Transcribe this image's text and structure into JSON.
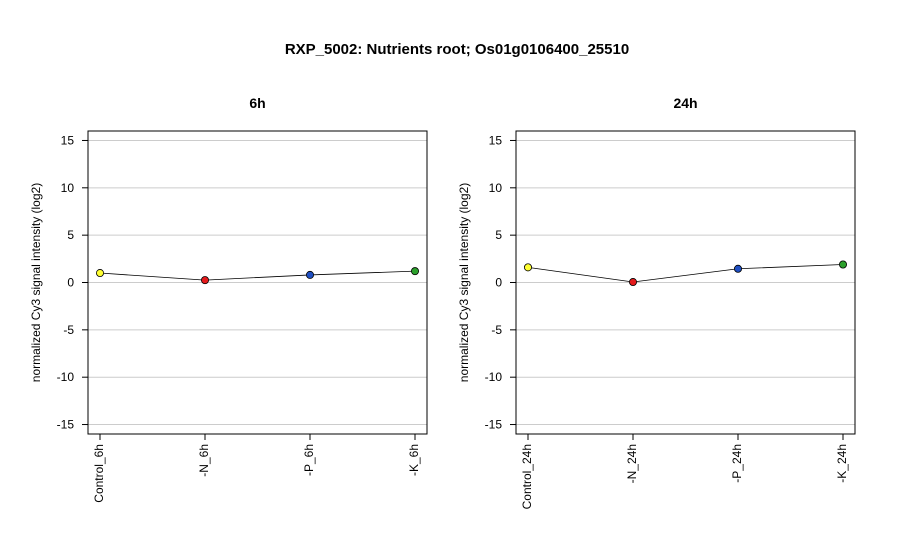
{
  "title": "RXP_5002: Nutrients root; Os01g0106400_25510",
  "chart_data": [
    {
      "type": "line",
      "title": "6h",
      "ylabel": "normalized Cy3 signal intensity (log2)",
      "xlabel": "",
      "ylim": [
        -16,
        16
      ],
      "yticks": [
        -15,
        -10,
        -5,
        0,
        5,
        10,
        15
      ],
      "grid": true,
      "categories": [
        "Control_6h",
        "-N_6h",
        "-P_6h",
        "-K_6h"
      ],
      "values": [
        1.0,
        0.25,
        0.8,
        1.2
      ],
      "point_colors": [
        "#ffff33",
        "#e41a1c",
        "#1f4fc2",
        "#2ca02c"
      ]
    },
    {
      "type": "line",
      "title": "24h",
      "ylabel": "normalized Cy3 signal intensity (log2)",
      "xlabel": "",
      "ylim": [
        -16,
        16
      ],
      "yticks": [
        -15,
        -10,
        -5,
        0,
        5,
        10,
        15
      ],
      "grid": true,
      "categories": [
        "Control_24h",
        "-N_24h",
        "-P_24h",
        "-K_24h"
      ],
      "values": [
        1.6,
        0.05,
        1.45,
        1.9
      ],
      "point_colors": [
        "#ffff33",
        "#e41a1c",
        "#1f4fc2",
        "#2ca02c"
      ]
    }
  ]
}
